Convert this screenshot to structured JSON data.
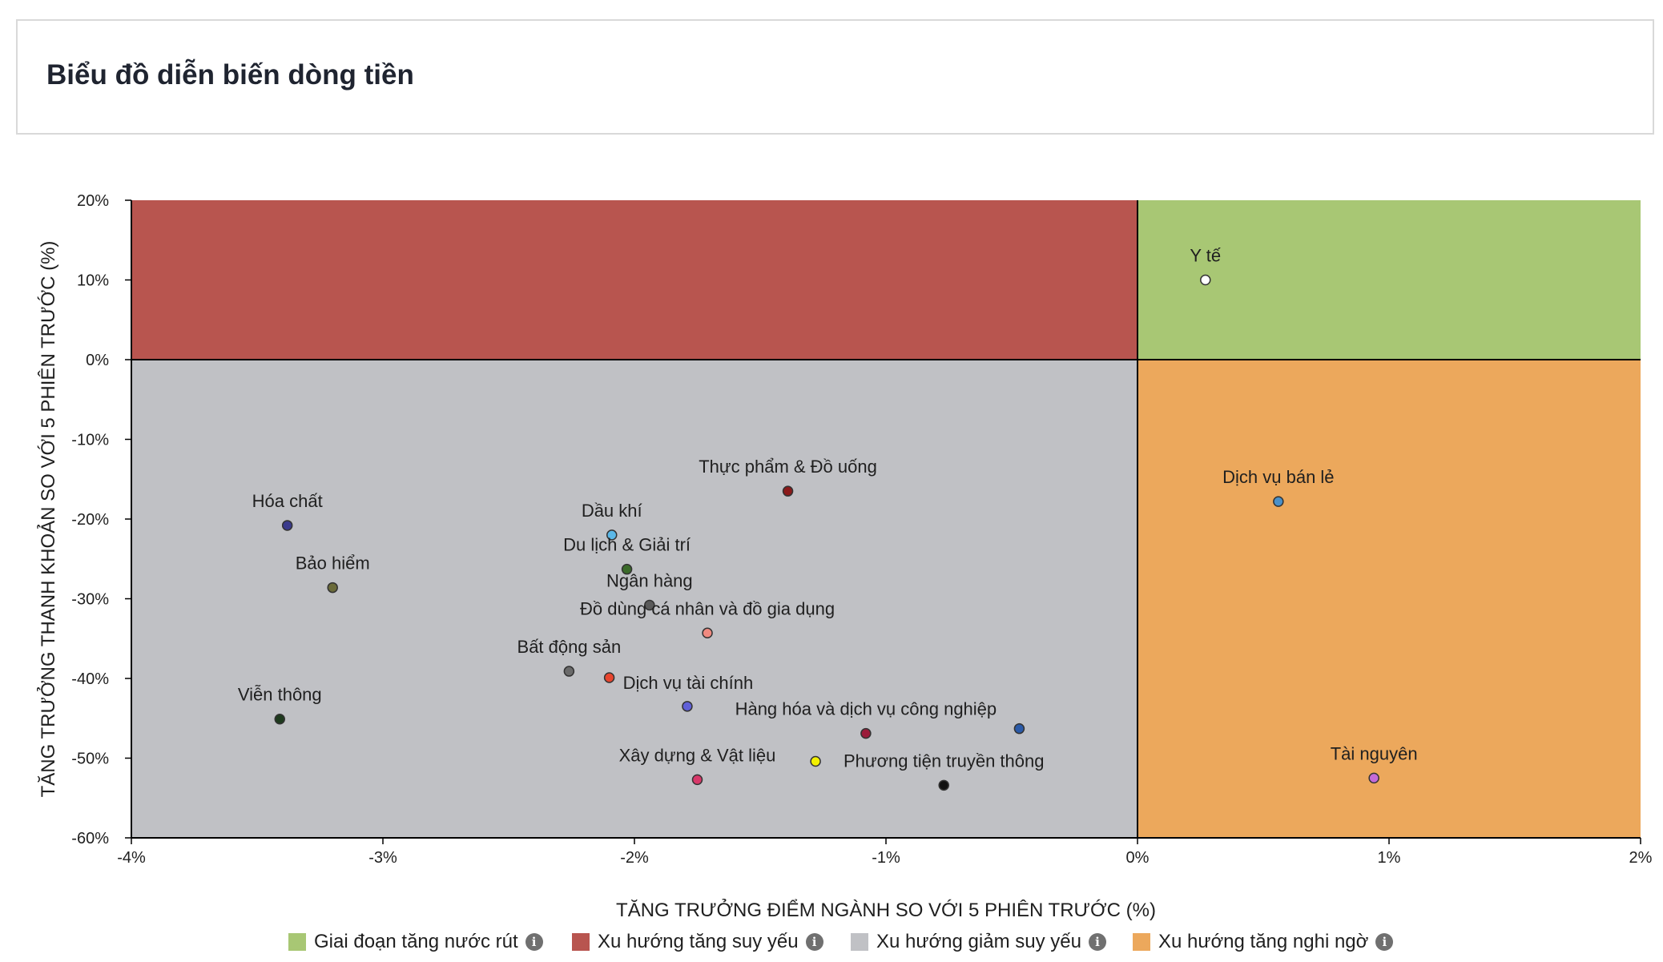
{
  "header": {
    "title": "Biểu đồ diễn biến dòng tiền"
  },
  "legend": [
    {
      "label": "Giai đoạn tăng nước rút",
      "color": "#a8c774",
      "icon": "info-icon"
    },
    {
      "label": "Xu hướng tăng suy yếu",
      "color": "#b8554f",
      "icon": "info-icon"
    },
    {
      "label": "Xu hướng giảm suy yếu",
      "color": "#c0c1c5",
      "icon": "info-icon"
    },
    {
      "label": "Xu hướng tăng nghi ngờ",
      "color": "#eca85c",
      "icon": "info-icon"
    }
  ],
  "chart_data": {
    "type": "scatter",
    "title": "",
    "xlabel": "TĂNG TRƯỞNG ĐIỂM NGÀNH SO VỚI 5 PHIÊN TRƯỚC (%)",
    "ylabel": "TĂNG TRƯỞNG THANH KHOẢN SO VỚI 5 PHIÊN TRƯỚC (%)",
    "xlim": [
      -4,
      2
    ],
    "ylim": [
      -60,
      20
    ],
    "x_ticks": [
      {
        "value": -4,
        "label": "-4%"
      },
      {
        "value": -3,
        "label": "-3%"
      },
      {
        "value": -2,
        "label": "-2%"
      },
      {
        "value": -1,
        "label": "-1%"
      },
      {
        "value": 0,
        "label": "0%"
      },
      {
        "value": 1,
        "label": "1%"
      },
      {
        "value": 2,
        "label": "2%"
      }
    ],
    "y_ticks": [
      {
        "value": 20,
        "label": "20%"
      },
      {
        "value": 10,
        "label": "10%"
      },
      {
        "value": 0,
        "label": "0%"
      },
      {
        "value": -10,
        "label": "-10%"
      },
      {
        "value": -20,
        "label": "-20%"
      },
      {
        "value": -30,
        "label": "-30%"
      },
      {
        "value": -40,
        "label": "-40%"
      },
      {
        "value": -50,
        "label": "-50%"
      },
      {
        "value": -60,
        "label": "-60%"
      }
    ],
    "quadrants": [
      {
        "name": "Giai đoạn tăng nước rút",
        "x": [
          0,
          2
        ],
        "y": [
          0,
          20
        ],
        "color": "#a8c774"
      },
      {
        "name": "Xu hướng tăng suy yếu",
        "x": [
          -4,
          0
        ],
        "y": [
          0,
          20
        ],
        "color": "#b8554f"
      },
      {
        "name": "Xu hướng giảm suy yếu",
        "x": [
          -4,
          0
        ],
        "y": [
          -60,
          0
        ],
        "color": "#c0c1c5"
      },
      {
        "name": "Xu hướng tăng nghi ngờ",
        "x": [
          0,
          2
        ],
        "y": [
          -60,
          0
        ],
        "color": "#eca85c"
      }
    ],
    "points": [
      {
        "label": "Y tế",
        "x": 0.27,
        "y": 10.0,
        "color": "#ffffff",
        "label_pos": "above"
      },
      {
        "label": "Dịch vụ bán lẻ",
        "x": 0.56,
        "y": -17.8,
        "color": "#4a90c8",
        "label_pos": "above"
      },
      {
        "label": "Tài nguyên",
        "x": 0.94,
        "y": -52.5,
        "color": "#c46bd8",
        "label_pos": "above"
      },
      {
        "label": "Thực phẩm & Đồ uống",
        "x": -1.39,
        "y": -16.5,
        "color": "#8b1a1a",
        "label_pos": "above"
      },
      {
        "label": "Hóa chất",
        "x": -3.38,
        "y": -20.8,
        "color": "#3a3a8c",
        "label_pos": "above"
      },
      {
        "label": "Dầu khí",
        "x": -2.09,
        "y": -22.0,
        "color": "#5bb8e8",
        "label_pos": "above"
      },
      {
        "label": "Du lịch & Giải trí",
        "x": -2.03,
        "y": -26.3,
        "color": "#3b6b2a",
        "label_pos": "above"
      },
      {
        "label": "Bảo hiểm",
        "x": -3.2,
        "y": -28.6,
        "color": "#6b6b3a",
        "label_pos": "above"
      },
      {
        "label": "Ngân hàng",
        "x": -1.94,
        "y": -30.8,
        "color": "#5a5a5a",
        "label_pos": "above"
      },
      {
        "label": "Đồ dùng cá nhân và đồ gia dụng",
        "x": -1.71,
        "y": -34.3,
        "color": "#f08a80",
        "label_pos": "above"
      },
      {
        "label": "Bất động sản",
        "x": -2.26,
        "y": -39.1,
        "color": "#6a6a6a",
        "label_pos": "above"
      },
      {
        "label": "Dịch vụ tài chính",
        "x": -2.1,
        "y": -39.9,
        "color": "#e8452e",
        "label_pos": "right"
      },
      {
        "label": "",
        "x": -1.79,
        "y": -43.5,
        "color": "#6060d8"
      },
      {
        "label": "Viễn thông",
        "x": -3.41,
        "y": -45.1,
        "color": "#1e3a1e",
        "label_pos": "above"
      },
      {
        "label": "Hàng hóa và dịch vụ công nghiệp",
        "x": -1.08,
        "y": -46.9,
        "color": "#9b1b3a",
        "label_pos": "above"
      },
      {
        "label": "",
        "x": -0.47,
        "y": -46.3,
        "color": "#2a5aa8"
      },
      {
        "label": "Xây dựng & Vật liệu",
        "x": -1.75,
        "y": -52.7,
        "color": "#d8386a",
        "label_pos": "above"
      },
      {
        "label": "",
        "x": -1.28,
        "y": -50.4,
        "color": "#f2f000"
      },
      {
        "label": "Phương tiện truyền thông",
        "x": -0.77,
        "y": -53.4,
        "color": "#111111",
        "label_pos": "above"
      }
    ],
    "grid": false,
    "legend_position": "bottom"
  }
}
